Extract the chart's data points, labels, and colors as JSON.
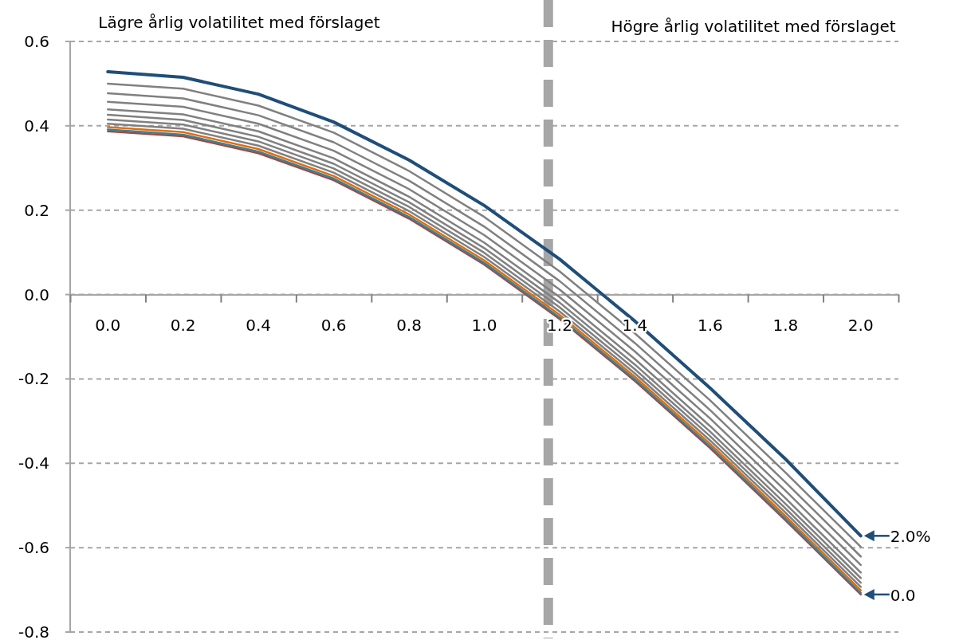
{
  "chart_data": {
    "type": "line",
    "x": [
      0,
      0.2,
      0.4,
      0.6,
      0.8,
      1.0,
      1.2,
      1.4,
      1.6,
      1.8,
      2.0
    ],
    "xlim": [
      -0.1,
      2.1
    ],
    "xticks": [
      {
        "value": -0.1,
        "label": null
      },
      {
        "value": 0,
        "label": "0.0"
      },
      {
        "value": 0.1,
        "label": null
      },
      {
        "value": 0.2,
        "label": "0.2"
      },
      {
        "value": 0.3,
        "label": null
      },
      {
        "value": 0.4,
        "label": "0.4"
      },
      {
        "value": 0.5,
        "label": null
      },
      {
        "value": 0.6,
        "label": "0.6"
      },
      {
        "value": 0.7,
        "label": null
      },
      {
        "value": 0.8,
        "label": "0.8"
      },
      {
        "value": 0.9,
        "label": null
      },
      {
        "value": 1.0,
        "label": "1.0"
      },
      {
        "value": 1.1,
        "label": null
      },
      {
        "value": 1.2,
        "label": "1.2"
      },
      {
        "value": 1.3,
        "label": null
      },
      {
        "value": 1.4,
        "label": "1.4"
      },
      {
        "value": 1.5,
        "label": null
      },
      {
        "value": 1.6,
        "label": "1.6"
      },
      {
        "value": 1.7,
        "label": null
      },
      {
        "value": 1.8,
        "label": "1.8"
      },
      {
        "value": 1.9,
        "label": null
      },
      {
        "value": 2.0,
        "label": "2.0"
      },
      {
        "value": 2.1,
        "label": null
      }
    ],
    "ylim": [
      -0.8,
      0.6
    ],
    "yticks": [
      {
        "value": -0.8,
        "label": "-0.8"
      },
      {
        "value": -0.6,
        "label": "-0.6"
      },
      {
        "value": -0.4,
        "label": "-0.4"
      },
      {
        "value": -0.2,
        "label": "-0.2"
      },
      {
        "value": 0,
        "label": "0.0"
      },
      {
        "value": 0.2,
        "label": "0.2"
      },
      {
        "value": 0.4,
        "label": "0.4"
      },
      {
        "value": 0.6,
        "label": "0.6"
      }
    ],
    "grid": "y",
    "marker": "none",
    "line_style": "solid",
    "series": [
      {
        "color": "#a9443e",
        "values": [
          0.387,
          0.375,
          0.335,
          0.271,
          0.18,
          0.071,
          -0.058,
          -0.205,
          -0.364,
          -0.535,
          -0.711
        ]
      },
      {
        "color": "#31859c",
        "values": [
          0.391,
          0.379,
          0.339,
          0.275,
          0.184,
          0.075,
          -0.054,
          -0.201,
          -0.36,
          -0.531,
          -0.707
        ]
      },
      {
        "color": "#e46c0a",
        "values": [
          0.397,
          0.385,
          0.345,
          0.281,
          0.19,
          0.081,
          -0.048,
          -0.195,
          -0.354,
          -0.525,
          -0.701
        ]
      },
      {
        "color": "#808080",
        "values": [
          0.405,
          0.393,
          0.353,
          0.289,
          0.198,
          0.089,
          -0.04,
          -0.187,
          -0.346,
          -0.517,
          -0.693
        ]
      },
      {
        "color": "#808080",
        "values": [
          0.415,
          0.403,
          0.363,
          0.299,
          0.208,
          0.099,
          -0.03,
          -0.177,
          -0.336,
          -0.507,
          -0.683
        ]
      },
      {
        "color": "#808080",
        "values": [
          0.426,
          0.414,
          0.374,
          0.31,
          0.219,
          0.11,
          -0.019,
          -0.166,
          -0.325,
          -0.496,
          -0.672
        ]
      },
      {
        "color": "#808080",
        "values": [
          0.439,
          0.427,
          0.387,
          0.323,
          0.232,
          0.123,
          -0.006,
          -0.153,
          -0.312,
          -0.483,
          -0.659
        ]
      },
      {
        "color": "#808080",
        "values": [
          0.457,
          0.445,
          0.405,
          0.341,
          0.25,
          0.141,
          0.012,
          -0.135,
          -0.294,
          -0.465,
          -0.641
        ]
      },
      {
        "color": "#808080",
        "values": [
          0.477,
          0.465,
          0.425,
          0.361,
          0.27,
          0.161,
          0.032,
          -0.115,
          -0.274,
          -0.445,
          -0.621
        ]
      },
      {
        "color": "#808080",
        "values": [
          0.5,
          0.488,
          0.448,
          0.384,
          0.293,
          0.184,
          0.055,
          -0.092,
          -0.251,
          -0.422,
          -0.598
        ]
      },
      {
        "color": "#1f4e79",
        "values": [
          0.528,
          0.515,
          0.475,
          0.409,
          0.319,
          0.211,
          0.084,
          -0.063,
          -0.222,
          -0.39,
          -0.572
        ]
      }
    ],
    "ref_lines": [
      {
        "axis": "x",
        "value": 1.17,
        "color": "#a6a6a6",
        "line_style": "dashed"
      }
    ],
    "annotations": [
      "Lägre årlig volatilitet med förslaget",
      "Högre årlig volatilitet med förslaget",
      {
        "text": "2.0%",
        "x": 2.0,
        "y": -0.572
      },
      {
        "text": "0.0",
        "x": 2.0,
        "y": -0.711
      }
    ]
  }
}
